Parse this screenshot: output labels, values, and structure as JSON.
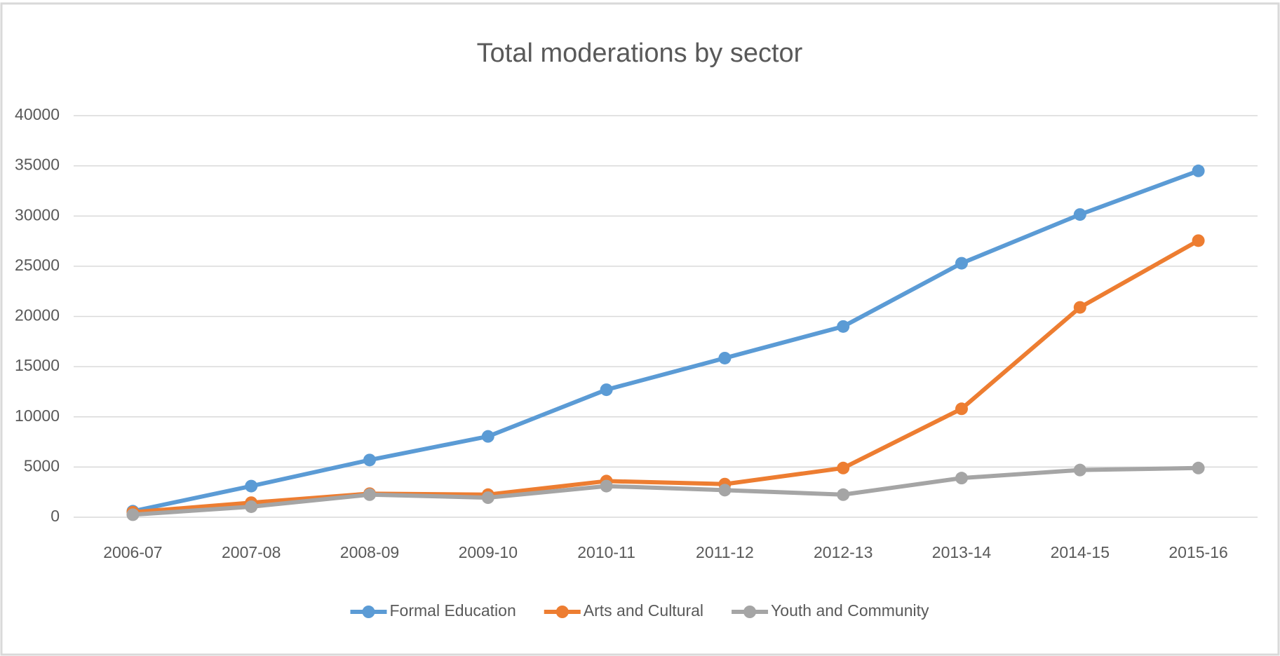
{
  "chart_data": {
    "type": "line",
    "title": "Total moderations by sector",
    "categories": [
      "2006-07",
      "2007-08",
      "2008-09",
      "2009-10",
      "2010-11",
      "2011-12",
      "2012-13",
      "2013-14",
      "2014-15",
      "2015-16"
    ],
    "series": [
      {
        "name": "Formal Education",
        "color": "#5b9bd5",
        "values": [
          600,
          3100,
          5700,
          8050,
          12700,
          15850,
          19000,
          25300,
          30150,
          34500
        ]
      },
      {
        "name": "Arts and Cultural",
        "color": "#ed7d31",
        "values": [
          500,
          1450,
          2350,
          2250,
          3600,
          3300,
          4900,
          10800,
          20900,
          27550
        ]
      },
      {
        "name": "Youth and Community",
        "color": "#a5a5a5",
        "values": [
          250,
          1050,
          2250,
          1950,
          3100,
          2700,
          2250,
          3900,
          4700,
          4900
        ]
      }
    ],
    "ylim": [
      0,
      40000
    ],
    "yticks": [
      0,
      5000,
      10000,
      15000,
      20000,
      25000,
      30000,
      35000,
      40000
    ],
    "grid": true,
    "legend": "bottom"
  }
}
